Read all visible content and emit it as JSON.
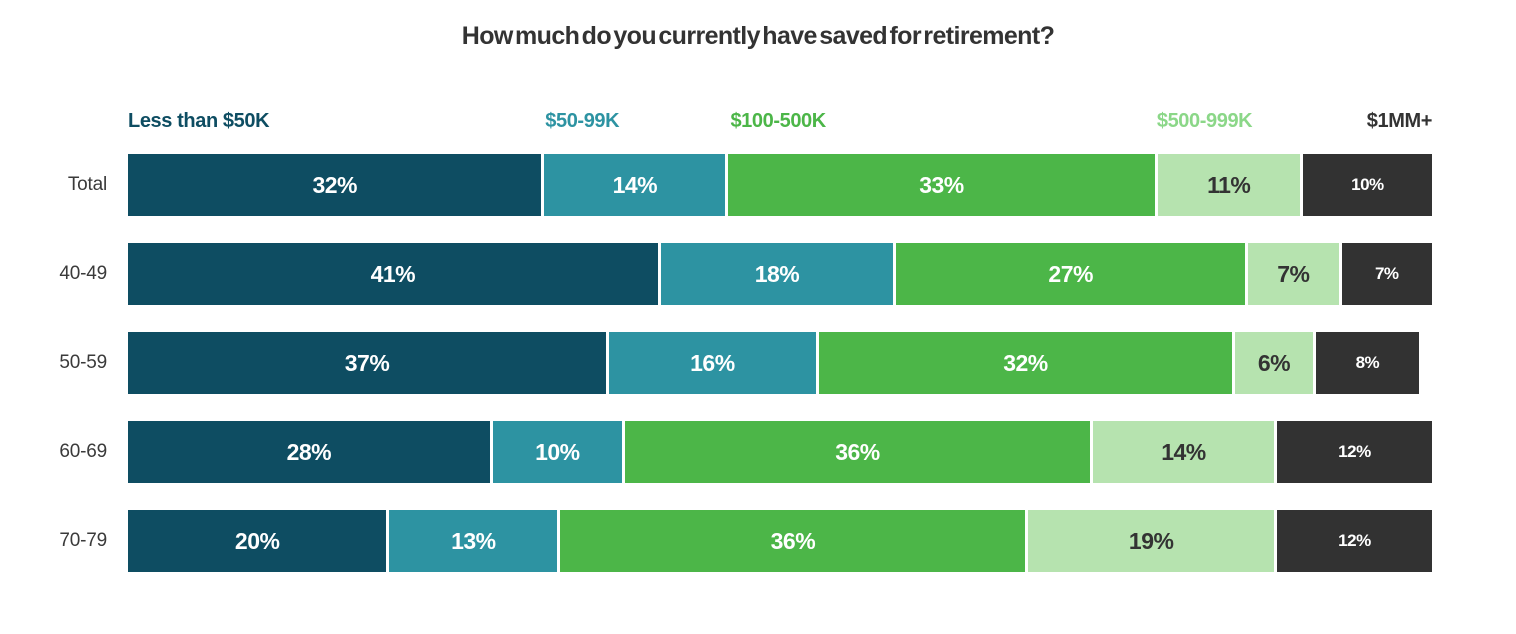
{
  "chart_data": {
    "type": "bar",
    "subtype": "horizontal-stacked",
    "title": "How much do you currently have saved for retirement?",
    "categories": [
      "Total",
      "40-49",
      "50-59",
      "60-69",
      "70-79"
    ],
    "series": [
      {
        "name": "Less than $50K",
        "color": "#0e4d62",
        "legend_color": "#0e4d62",
        "label_color": "#ffffff",
        "values": [
          32,
          41,
          37,
          28,
          20
        ]
      },
      {
        "name": "$50-99K",
        "color": "#2d93a2",
        "legend_color": "#2d93a2",
        "label_color": "#ffffff",
        "values": [
          14,
          18,
          16,
          10,
          13
        ]
      },
      {
        "name": "$100-500K",
        "color": "#4cb648",
        "legend_color": "#4cb648",
        "label_color": "#ffffff",
        "values": [
          33,
          27,
          32,
          36,
          36
        ]
      },
      {
        "name": "$500-999K",
        "color": "#b6e3af",
        "legend_color": "#8bd788",
        "label_color": "#333333",
        "values": [
          11,
          7,
          6,
          14,
          19
        ]
      },
      {
        "name": "$1MM+",
        "color": "#323232",
        "legend_color": "#333333",
        "label_color": "#ffffff",
        "values": [
          10,
          7,
          8,
          12,
          12
        ]
      }
    ],
    "value_suffix": "%",
    "xlim": [
      0,
      100
    ],
    "grid": false,
    "legend_position": "top",
    "legend_left_offsets_pct": [
      0,
      32,
      46.2,
      78.9,
      null
    ],
    "row_sums": [
      100,
      100,
      99,
      100,
      100
    ]
  }
}
